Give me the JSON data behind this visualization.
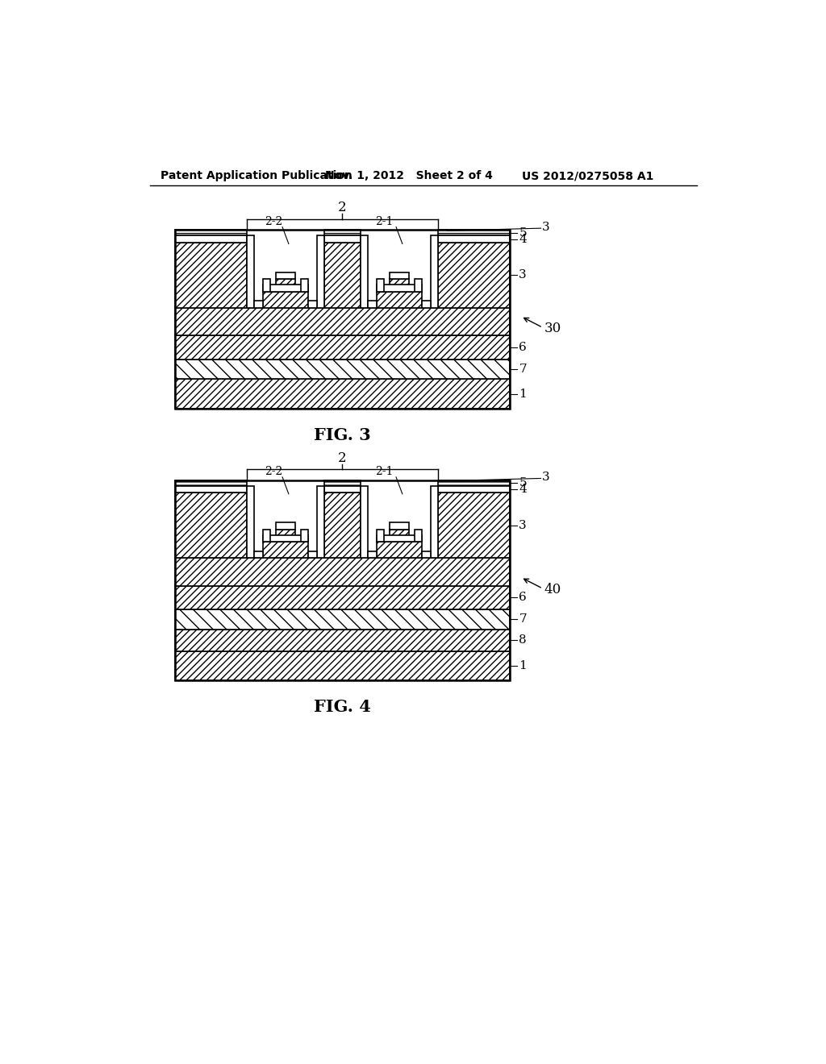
{
  "header_left": "Patent Application Publication",
  "header_mid": "Nov. 1, 2012   Sheet 2 of 4",
  "header_right": "US 2012/0275058 A1",
  "fig3_label": "FIG. 3",
  "fig4_label": "FIG. 4",
  "fig3_ref": "30",
  "fig4_ref": "40",
  "bg_color": "#ffffff",
  "line_color": "#000000"
}
